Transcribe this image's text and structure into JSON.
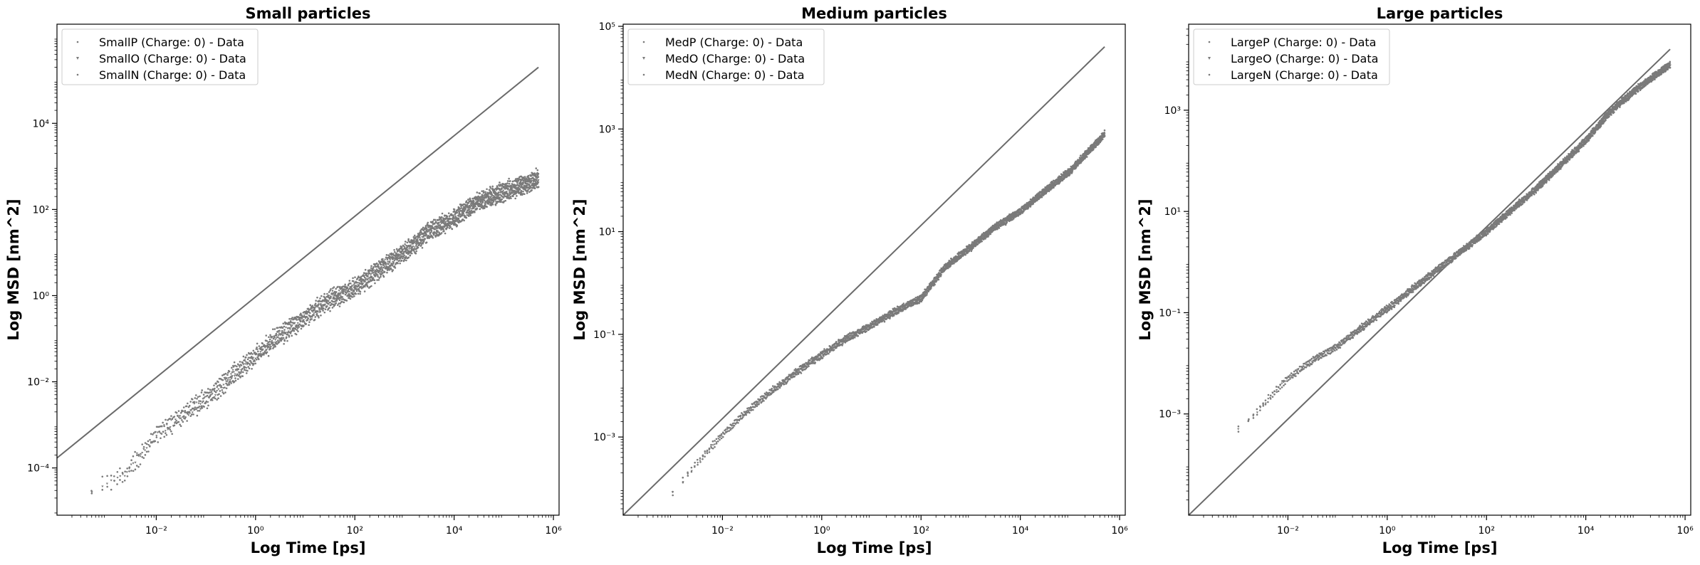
{
  "figure": {
    "axis_x_label": "Log Time [ps]",
    "axis_y_label": "Log MSD [nm^2]"
  },
  "colors": {
    "data": "#7a7a7a",
    "reference_line": "#6a6a6a",
    "axes": "#000000"
  },
  "chart_data": [
    {
      "type": "scatter",
      "title": "Small particles",
      "xlabel": "Log Time [ps]",
      "ylabel": "Log MSD [nm^2]",
      "xscale": "log",
      "yscale": "log",
      "xlim": [
        0.0001,
        1300000
      ],
      "ylim": [
        8e-06,
        2000000
      ],
      "xticks": [
        {
          "v": 0.01,
          "label": "10⁻²"
        },
        {
          "v": 1,
          "label": "10⁰"
        },
        {
          "v": 100,
          "label": "10²"
        },
        {
          "v": 10000,
          "label": "10⁴"
        },
        {
          "v": 1000000,
          "label": "10⁶"
        }
      ],
      "yticks": [
        {
          "v": 0.0001,
          "label": "10⁻⁴"
        },
        {
          "v": 0.01,
          "label": "10⁻²"
        },
        {
          "v": 1,
          "label": "10⁰"
        },
        {
          "v": 100,
          "label": "10²"
        },
        {
          "v": 10000,
          "label": "10⁴"
        }
      ],
      "legend_position": "top-left",
      "series": [
        {
          "name": "SmallP (Charge: 0) - Data",
          "marker": "dot"
        },
        {
          "name": "SmallO (Charge: 0) - Data",
          "marker": "triangle"
        },
        {
          "name": "SmallN (Charge: 0) - Data",
          "marker": "dot"
        }
      ],
      "curve": [
        [
          0.0005,
          3e-05
        ],
        [
          0.002,
          6e-05
        ],
        [
          0.005,
          0.0002
        ],
        [
          0.01,
          0.0006
        ],
        [
          0.03,
          0.0015
        ],
        [
          0.1,
          0.004
        ],
        [
          0.3,
          0.012
        ],
        [
          1,
          0.04
        ],
        [
          3,
          0.12
        ],
        [
          10,
          0.3
        ],
        [
          30,
          0.8
        ],
        [
          100,
          1.5
        ],
        [
          300,
          4
        ],
        [
          1000,
          10
        ],
        [
          3000,
          30
        ],
        [
          10000,
          60
        ],
        [
          30000,
          150
        ],
        [
          100000,
          250
        ],
        [
          500000,
          500
        ]
      ],
      "reference_line": [
        [
          0.0001,
          0.00017
        ],
        [
          500000,
          200000
        ]
      ]
    },
    {
      "type": "scatter",
      "title": "Medium particles",
      "xlabel": "Log Time [ps]",
      "ylabel": "Log MSD [nm^2]",
      "xscale": "log",
      "yscale": "log",
      "xlim": [
        0.0001,
        1300000
      ],
      "ylim": [
        3e-05,
        110000
      ],
      "xticks": [
        {
          "v": 0.01,
          "label": "10⁻²"
        },
        {
          "v": 1,
          "label": "10⁰"
        },
        {
          "v": 100,
          "label": "10²"
        },
        {
          "v": 10000,
          "label": "10⁴"
        },
        {
          "v": 1000000,
          "label": "10⁶"
        }
      ],
      "yticks": [
        {
          "v": 0.001,
          "label": "10⁻³"
        },
        {
          "v": 0.1,
          "label": "10⁻¹"
        },
        {
          "v": 10,
          "label": "10¹"
        },
        {
          "v": 1000,
          "label": "10³"
        },
        {
          "v": 100000,
          "label": "10⁵"
        }
      ],
      "legend_position": "top-left",
      "series": [
        {
          "name": "MedP (Charge: 0) - Data",
          "marker": "dot"
        },
        {
          "name": "MedO (Charge: 0) - Data",
          "marker": "triangle"
        },
        {
          "name": "MedN (Charge: 0) - Data",
          "marker": "dot"
        }
      ],
      "curve": [
        [
          0.001,
          8e-05
        ],
        [
          0.003,
          0.0003
        ],
        [
          0.01,
          0.0011
        ],
        [
          0.03,
          0.003
        ],
        [
          0.1,
          0.008
        ],
        [
          0.3,
          0.018
        ],
        [
          1,
          0.04
        ],
        [
          3,
          0.08
        ],
        [
          10,
          0.15
        ],
        [
          30,
          0.28
        ],
        [
          100,
          0.5
        ],
        [
          300,
          2
        ],
        [
          1000,
          5
        ],
        [
          3000,
          12
        ],
        [
          10000,
          25
        ],
        [
          30000,
          60
        ],
        [
          100000,
          150
        ],
        [
          500000,
          800
        ]
      ],
      "reference_line": [
        [
          0.0001,
          3e-05
        ],
        [
          500000,
          40000
        ]
      ]
    },
    {
      "type": "scatter",
      "title": "Large particles",
      "xlabel": "Log Time [ps]",
      "ylabel": "Log MSD [nm^2]",
      "xscale": "log",
      "yscale": "log",
      "xlim": [
        0.0001,
        1300000
      ],
      "ylim": [
        1e-05,
        50000
      ],
      "xticks": [
        {
          "v": 0.01,
          "label": "10⁻²"
        },
        {
          "v": 1,
          "label": "10⁰"
        },
        {
          "v": 100,
          "label": "10²"
        },
        {
          "v": 10000,
          "label": "10⁴"
        },
        {
          "v": 1000000,
          "label": "10⁶"
        }
      ],
      "yticks": [
        {
          "v": 0.001,
          "label": "10⁻³"
        },
        {
          "v": 0.1,
          "label": "10⁻¹"
        },
        {
          "v": 10,
          "label": "10¹"
        },
        {
          "v": 1000,
          "label": "10³"
        }
      ],
      "legend_position": "top-left",
      "series": [
        {
          "name": "LargeP (Charge: 0) - Data",
          "marker": "dot"
        },
        {
          "name": "LargeO (Charge: 0) - Data",
          "marker": "triangle"
        },
        {
          "name": "LargeN (Charge: 0) - Data",
          "marker": "dot"
        }
      ],
      "curve": [
        [
          0.001,
          0.0005
        ],
        [
          0.002,
          0.0009
        ],
        [
          0.005,
          0.0025
        ],
        [
          0.01,
          0.005
        ],
        [
          0.03,
          0.011
        ],
        [
          0.1,
          0.022
        ],
        [
          0.3,
          0.05
        ],
        [
          1,
          0.12
        ],
        [
          3,
          0.28
        ],
        [
          10,
          0.7
        ],
        [
          30,
          1.6
        ],
        [
          100,
          4
        ],
        [
          300,
          10
        ],
        [
          1000,
          28
        ],
        [
          3000,
          80
        ],
        [
          10000,
          250
        ],
        [
          30000,
          900
        ],
        [
          100000,
          2500
        ],
        [
          500000,
          8000
        ]
      ],
      "reference_line": [
        [
          0.0001,
          1e-05
        ],
        [
          500000,
          16000
        ]
      ]
    }
  ]
}
